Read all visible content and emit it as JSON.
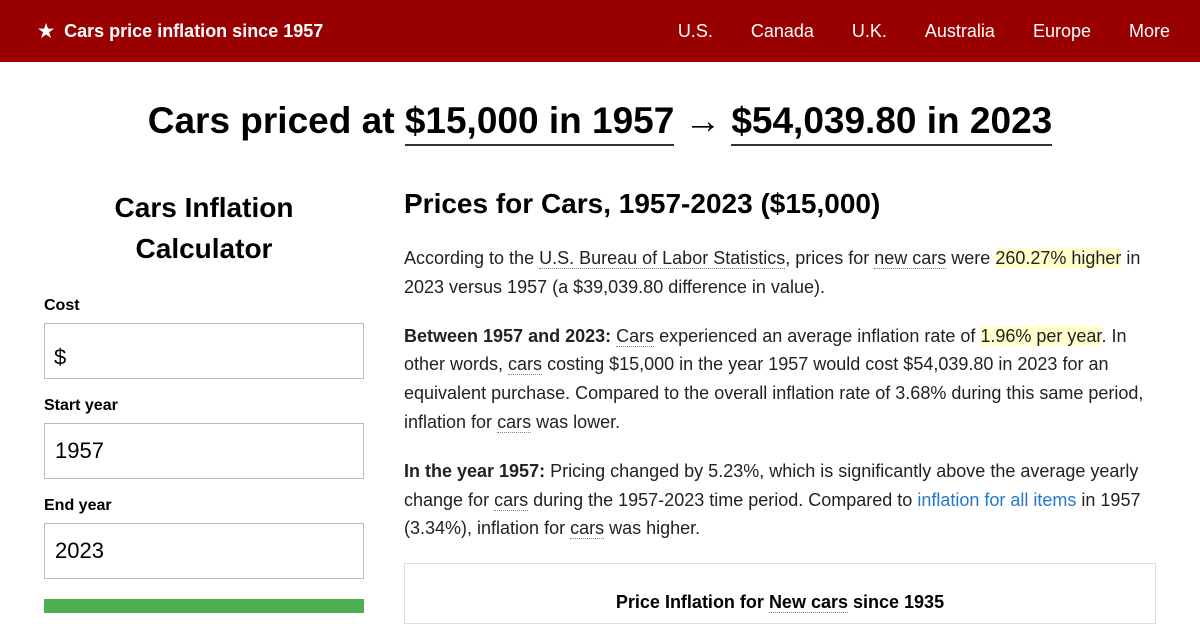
{
  "topbar": {
    "title": "Cars price inflation since 1957",
    "nav": [
      "U.S.",
      "Canada",
      "U.K.",
      "Australia",
      "Europe",
      "More"
    ]
  },
  "headline": {
    "prefix": "Cars priced at ",
    "left": "$15,000 in 1957",
    "right": "$54,039.80 in 2023"
  },
  "calculator": {
    "title": "Cars Inflation Calculator",
    "cost_label": "Cost",
    "cost_prefix": "$",
    "cost_value": "",
    "start_label": "Start year",
    "start_value": "1957",
    "end_label": "End year",
    "end_value": "2023"
  },
  "content": {
    "heading": "Prices for Cars, 1957-2023 ($15,000)",
    "p1_a": "According to the ",
    "p1_bls": "U.S. Bureau of Labor Statistics",
    "p1_b": ", prices for ",
    "p1_newcars": "new cars",
    "p1_c": " were ",
    "p1_pct": "260.27% higher",
    "p1_d": " in 2023 versus 1957 (a $39,039.80 difference in value).",
    "p2_bold": "Between 1957 and 2023:",
    "p2_a": " ",
    "p2_cars1": "Cars",
    "p2_b": " experienced an average inflation rate of ",
    "p2_rate": "1.96% per year",
    "p2_c": ". In other words, ",
    "p2_cars2": "cars",
    "p2_d": " costing $15,000 in the year 1957 would cost $54,039.80 in 2023 for an equivalent purchase. Compared to the overall inflation rate of 3.68% during this same period, inflation for ",
    "p2_cars3": "cars",
    "p2_e": " was lower.",
    "p3_bold": "In the year 1957:",
    "p3_a": " Pricing changed by 5.23%, which is significantly above the average yearly change for ",
    "p3_cars1": "cars",
    "p3_b": " during the 1957-2023 time period. Compared to ",
    "p3_link": "inflation for all items",
    "p3_c": " in 1957 (3.34%), inflation for ",
    "p3_cars2": "cars",
    "p3_d": " was higher.",
    "table_title_a": "Price Inflation for ",
    "table_title_u": "New cars",
    "table_title_b": " since 1935"
  },
  "colors": {
    "topbar_bg": "#990000",
    "highlight_bg": "#ffffcc",
    "link": "#2478cc",
    "button": "#4caf50"
  }
}
